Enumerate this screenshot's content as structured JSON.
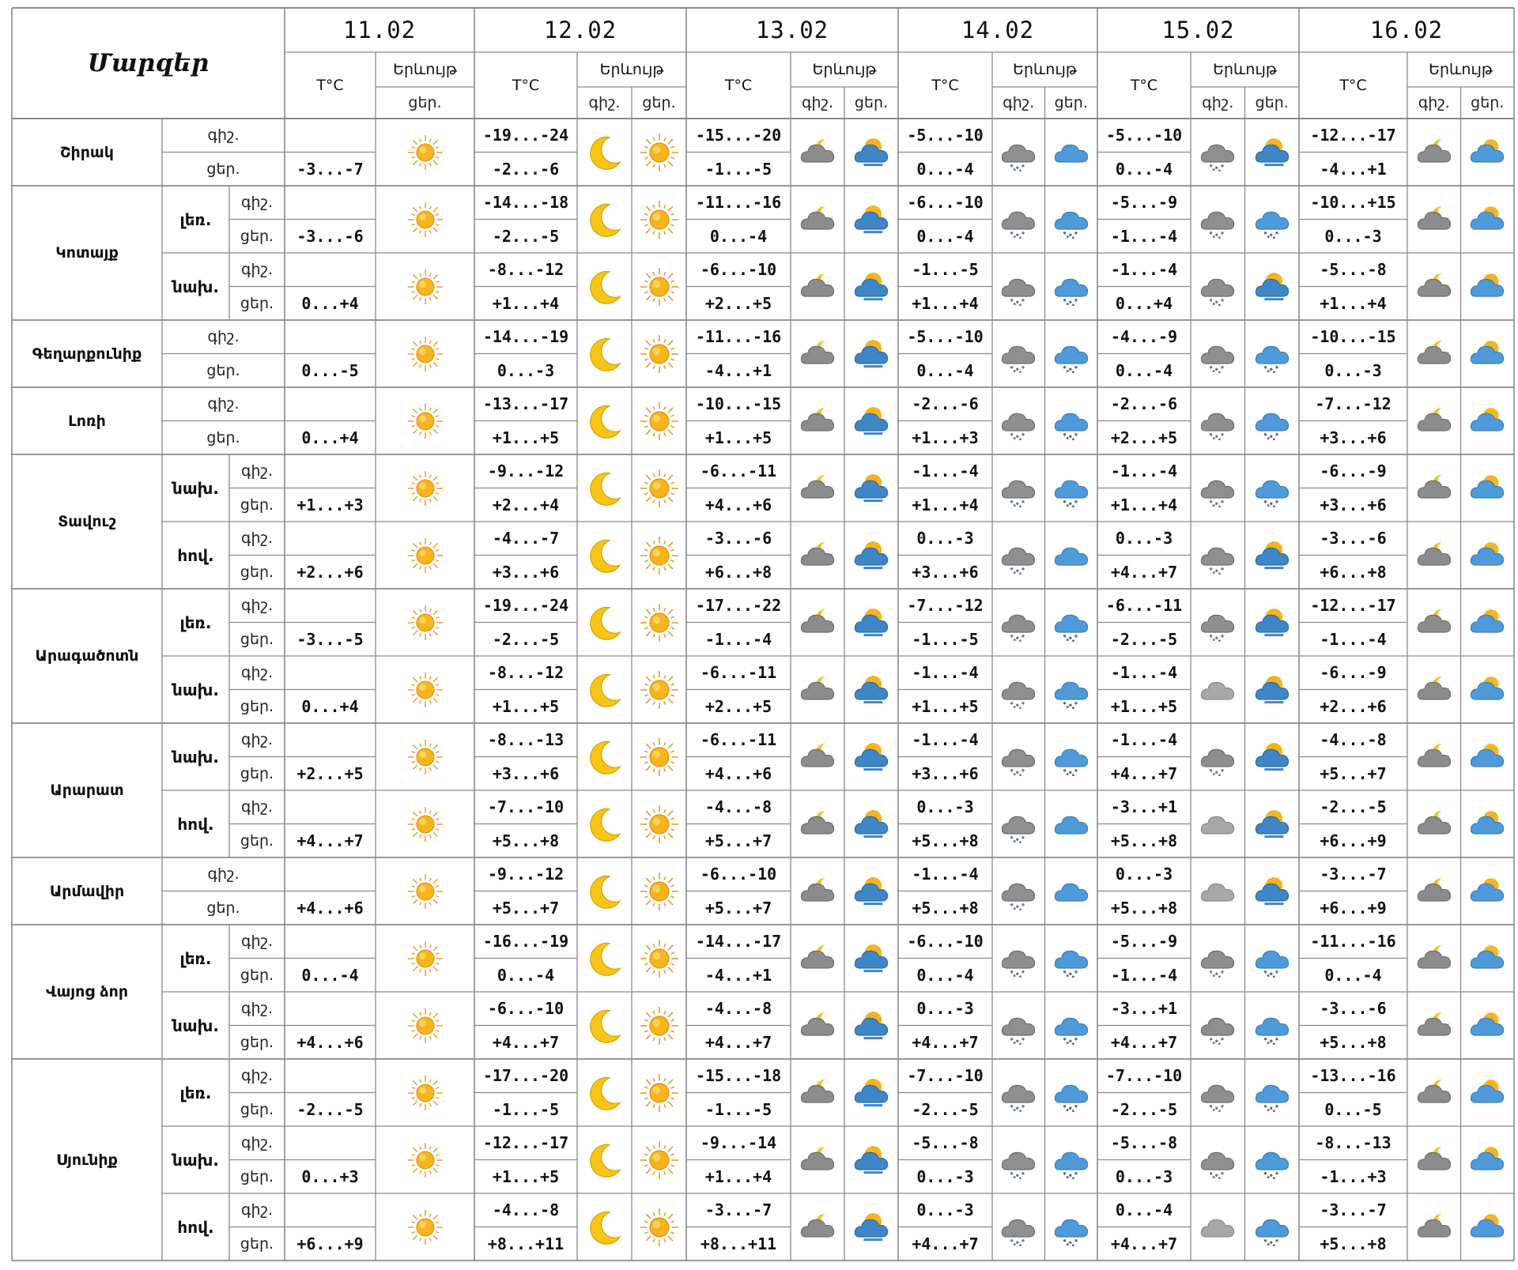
{
  "title": "Մարզեր",
  "dates": [
    "11.02",
    "12.02",
    "13.02",
    "14.02",
    "15.02",
    "16.02"
  ],
  "labels": {
    "temp": "T°C",
    "phenomenon": "Երևույթ",
    "night": "գիշ.",
    "day": "ցեր."
  },
  "provinces": [
    {
      "name": "Շիրակ",
      "zones": [
        {
          "zone": "",
          "d11": "-3...-7",
          "night": [
            "-19...-24",
            "-15...-20",
            "-5...-10",
            "-5...-10",
            "-12...-17"
          ],
          "day": [
            "-2...-6",
            "-1...-5",
            "0...-4",
            "0...-4",
            "-4...+1"
          ],
          "icons": [
            "sun",
            "moon",
            "sun",
            "cloud-moon",
            "sun-cloud",
            "cloud-snow",
            "cloud-blue",
            "cloud-snow",
            "sun-cloud",
            "cloud-moon",
            "sun-cloud-blue"
          ]
        }
      ]
    },
    {
      "name": "Կոտայք",
      "zones": [
        {
          "zone": "լեռ.",
          "d11": "-3...-6",
          "night": [
            "-14...-18",
            "-11...-16",
            "-6...-10",
            "-5...-9",
            "-10...+15"
          ],
          "day": [
            "-2...-5",
            "0...-4",
            "0...-4",
            "-1...-4",
            "0...-3"
          ],
          "icons": [
            "sun",
            "moon",
            "sun",
            "cloud-moon",
            "sun-cloud",
            "cloud-snow",
            "cloud-blue-snow",
            "cloud-snow",
            "cloud-blue-snow",
            "cloud-moon",
            "sun-cloud-blue"
          ]
        },
        {
          "zone": "նախ.",
          "d11": "0...+4",
          "night": [
            "-8...-12",
            "-6...-10",
            "-1...-5",
            "-1...-4",
            "-5...-8"
          ],
          "day": [
            "+1...+4",
            "+2...+5",
            "+1...+4",
            "0...+4",
            "+1...+4"
          ],
          "icons": [
            "sun",
            "moon",
            "sun",
            "cloud-moon",
            "sun-cloud",
            "cloud-snow",
            "cloud-blue-snow",
            "cloud-snow",
            "sun-cloud",
            "cloud-moon",
            "sun-cloud-blue"
          ]
        }
      ]
    },
    {
      "name": "Գեղարքունիք",
      "zones": [
        {
          "zone": "",
          "d11": "0...-5",
          "night": [
            "-14...-19",
            "-11...-16",
            "-5...-10",
            "-4...-9",
            "-10...-15"
          ],
          "day": [
            "0...-3",
            "-4...+1",
            "0...-4",
            "0...-4",
            "0...-3"
          ],
          "icons": [
            "sun",
            "moon",
            "sun",
            "cloud-moon",
            "sun-cloud",
            "cloud-snow",
            "cloud-blue-snow",
            "cloud-snow",
            "cloud-blue-snow",
            "cloud-moon",
            "sun-cloud-blue"
          ]
        }
      ]
    },
    {
      "name": "Լոռի",
      "zones": [
        {
          "zone": "",
          "d11": "0...+4",
          "night": [
            "-13...-17",
            "-10...-15",
            "-2...-6",
            "-2...-6",
            "-7...-12"
          ],
          "day": [
            "+1...+5",
            "+1...+5",
            "+1...+3",
            "+2...+5",
            "+3...+6"
          ],
          "icons": [
            "sun",
            "moon",
            "sun",
            "cloud-moon",
            "sun-cloud",
            "cloud-snow",
            "cloud-blue-snow",
            "cloud-snow",
            "cloud-blue-snow",
            "cloud-moon",
            "sun-cloud-blue"
          ]
        }
      ]
    },
    {
      "name": "Տավուշ",
      "zones": [
        {
          "zone": "նախ.",
          "d11": "+1...+3",
          "night": [
            "-9...-12",
            "-6...-11",
            "-1...-4",
            "-1...-4",
            "-6...-9"
          ],
          "day": [
            "+2...+4",
            "+4...+6",
            "+1...+4",
            "+1...+4",
            "+3...+6"
          ],
          "icons": [
            "sun",
            "moon",
            "sun",
            "cloud-moon",
            "sun-cloud",
            "cloud-snow",
            "cloud-blue-snow",
            "cloud-snow",
            "cloud-blue-snow",
            "cloud-moon",
            "sun-cloud-blue"
          ]
        },
        {
          "zone": "հով.",
          "d11": "+2...+6",
          "night": [
            "-4...-7",
            "-3...-6",
            "0...-3",
            "0...-3",
            "-3...-6"
          ],
          "day": [
            "+3...+6",
            "+6...+8",
            "+3...+6",
            "+4...+7",
            "+6...+8"
          ],
          "icons": [
            "sun",
            "moon",
            "sun",
            "cloud-moon",
            "sun-cloud",
            "cloud-snow",
            "cloud-blue",
            "cloud-snow",
            "sun-cloud",
            "cloud-moon",
            "sun-cloud-blue"
          ]
        }
      ]
    },
    {
      "name": "Արագածոտն",
      "zones": [
        {
          "zone": "լեռ.",
          "d11": "-3...-5",
          "night": [
            "-19...-24",
            "-17...-22",
            "-7...-12",
            "-6...-11",
            "-12...-17"
          ],
          "day": [
            "-2...-5",
            "-1...-4",
            "-1...-5",
            "-2...-5",
            "-1...-4"
          ],
          "icons": [
            "sun",
            "moon",
            "sun",
            "cloud-moon",
            "sun-cloud",
            "cloud-snow",
            "cloud-blue-snow",
            "cloud-snow",
            "sun-cloud",
            "cloud-moon",
            "sun-cloud-blue"
          ]
        },
        {
          "zone": "նախ.",
          "d11": "0...+4",
          "night": [
            "-8...-12",
            "-6...-11",
            "-1...-4",
            "-1...-4",
            "-6...-9"
          ],
          "day": [
            "+1...+5",
            "+2...+5",
            "+1...+5",
            "+1...+5",
            "+2...+6"
          ],
          "icons": [
            "sun",
            "moon",
            "sun",
            "cloud-moon",
            "sun-cloud",
            "cloud-snow",
            "cloud-blue-snow",
            "cloud-gray",
            "sun-cloud",
            "cloud-moon",
            "sun-cloud-blue"
          ]
        }
      ]
    },
    {
      "name": "Արարատ",
      "zones": [
        {
          "zone": "նախ.",
          "d11": "+2...+5",
          "night": [
            "-8...-13",
            "-6...-11",
            "-1...-4",
            "-1...-4",
            "-4...-8"
          ],
          "day": [
            "+3...+6",
            "+4...+6",
            "+3...+6",
            "+4...+7",
            "+5...+7"
          ],
          "icons": [
            "sun",
            "moon",
            "sun",
            "cloud-moon",
            "sun-cloud",
            "cloud-snow",
            "cloud-blue-snow",
            "cloud-snow",
            "sun-cloud",
            "cloud-moon",
            "sun-cloud-blue"
          ]
        },
        {
          "zone": "հով.",
          "d11": "+4...+7",
          "night": [
            "-7...-10",
            "-4...-8",
            "0...-3",
            "-3...+1",
            "-2...-5"
          ],
          "day": [
            "+5...+8",
            "+5...+7",
            "+5...+8",
            "+5...+8",
            "+6...+9"
          ],
          "icons": [
            "sun",
            "moon",
            "sun",
            "cloud-moon",
            "sun-cloud",
            "cloud-snow",
            "cloud-blue",
            "cloud-gray",
            "sun-cloud",
            "cloud-moon",
            "sun-cloud-blue"
          ]
        }
      ]
    },
    {
      "name": "Արմավիր",
      "zones": [
        {
          "zone": "",
          "d11": "+4...+6",
          "night": [
            "-9...-12",
            "-6...-10",
            "-1...-4",
            "0...-3",
            "-3...-7"
          ],
          "day": [
            "+5...+7",
            "+5...+7",
            "+5...+8",
            "+5...+8",
            "+6...+9"
          ],
          "icons": [
            "sun",
            "moon",
            "sun",
            "cloud-moon",
            "sun-cloud",
            "cloud-snow",
            "cloud-blue",
            "cloud-gray",
            "sun-cloud",
            "cloud-moon",
            "sun-cloud-blue"
          ]
        }
      ]
    },
    {
      "name": "Վայոց ձոր",
      "zones": [
        {
          "zone": "լեռ.",
          "d11": "0...-4",
          "night": [
            "-16...-19",
            "-14...-17",
            "-6...-10",
            "-5...-9",
            "-11...-16"
          ],
          "day": [
            "0...-4",
            "-4...+1",
            "0...-4",
            "-1...-4",
            "0...-4"
          ],
          "icons": [
            "sun",
            "moon",
            "sun",
            "cloud-moon",
            "sun-cloud",
            "cloud-snow",
            "cloud-blue-snow",
            "cloud-snow",
            "cloud-blue-snow",
            "cloud-moon",
            "sun-cloud-blue"
          ]
        },
        {
          "zone": "նախ.",
          "d11": "+4...+6",
          "night": [
            "-6...-10",
            "-4...-8",
            "0...-3",
            "-3...+1",
            "-3...-6"
          ],
          "day": [
            "+4...+7",
            "+4...+7",
            "+4...+7",
            "+4...+7",
            "+5...+8"
          ],
          "icons": [
            "sun",
            "moon",
            "sun",
            "cloud-moon",
            "sun-cloud",
            "cloud-snow",
            "cloud-blue-snow",
            "cloud-snow",
            "cloud-blue-snow",
            "cloud-moon",
            "sun-cloud-blue"
          ]
        }
      ]
    },
    {
      "name": "Սյունիք",
      "zones": [
        {
          "zone": "լեռ.",
          "d11": "-2...-5",
          "night": [
            "-17...-20",
            "-15...-18",
            "-7...-10",
            "-7...-10",
            "-13...-16"
          ],
          "day": [
            "-1...-5",
            "-1...-5",
            "-2...-5",
            "-2...-5",
            "0...-5"
          ],
          "icons": [
            "sun",
            "moon",
            "sun",
            "cloud-moon",
            "sun-cloud",
            "cloud-snow",
            "cloud-blue-snow",
            "cloud-snow",
            "cloud-blue-snow",
            "cloud-moon",
            "sun-cloud-blue"
          ]
        },
        {
          "zone": "նախ.",
          "d11": "0...+3",
          "night": [
            "-12...-17",
            "-9...-14",
            "-5...-8",
            "-5...-8",
            "-8...-13"
          ],
          "day": [
            "+1...+5",
            "+1...+4",
            "0...-3",
            "0...-3",
            "-1...+3"
          ],
          "icons": [
            "sun",
            "moon",
            "sun",
            "cloud-moon",
            "sun-cloud",
            "cloud-snow",
            "cloud-blue-snow",
            "cloud-snow",
            "cloud-blue-snow",
            "cloud-moon",
            "sun-cloud-blue"
          ]
        },
        {
          "zone": "հով.",
          "d11": "+6...+9",
          "night": [
            "-4...-8",
            "-3...-7",
            "0...-3",
            "0...-4",
            "-3...-7"
          ],
          "day": [
            "+8...+11",
            "+8...+11",
            "+4...+7",
            "+4...+7",
            "+5...+8"
          ],
          "icons": [
            "sun",
            "moon",
            "sun",
            "cloud-moon",
            "sun-cloud",
            "cloud-snow",
            "cloud-blue-snow",
            "cloud-gray",
            "cloud-blue-snow",
            "cloud-moon",
            "sun-cloud-blue"
          ]
        }
      ]
    }
  ]
}
